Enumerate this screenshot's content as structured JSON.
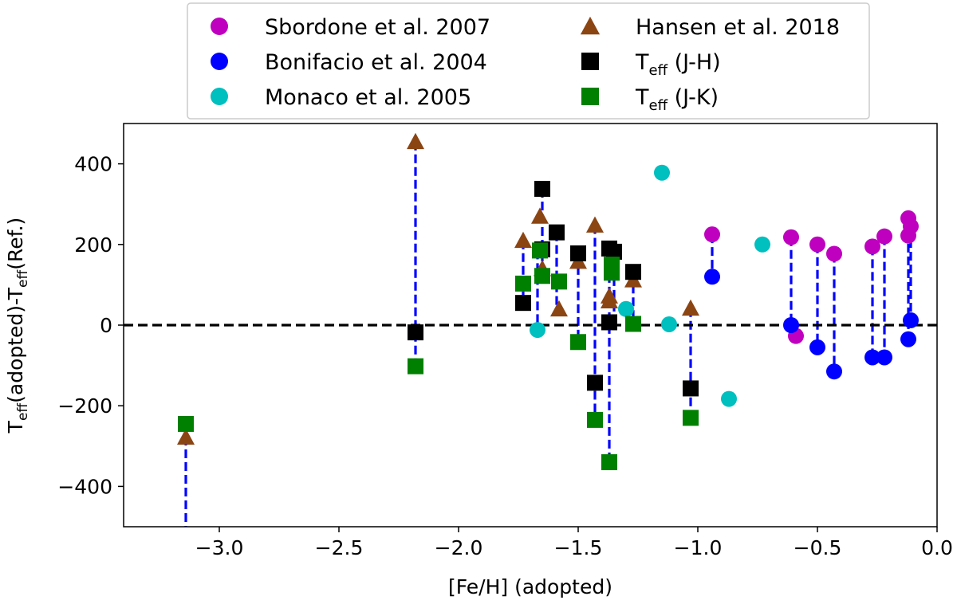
{
  "chart_data": {
    "type": "scatter",
    "xlabel": "[Fe/H] (adopted)",
    "ylabel": {
      "base": "T",
      "sub1": "eff",
      "mid": "(adopted)-T",
      "sub2": "eff",
      "tail": "(Ref.)"
    },
    "xlim": [
      -3.4,
      0.0
    ],
    "ylim": [
      -500,
      500
    ],
    "xticks": [
      -3.0,
      -2.5,
      -2.0,
      -1.5,
      -1.0,
      -0.5,
      0.0
    ],
    "xtick_labels": [
      "−3.0",
      "−2.5",
      "−2.0",
      "−1.5",
      "−1.0",
      "−0.5",
      "0.0"
    ],
    "yticks": [
      -400,
      -200,
      0,
      200,
      400
    ],
    "ytick_labels": [
      "−400",
      "−200",
      "0",
      "200",
      "400"
    ],
    "reference_line": {
      "y": 0,
      "style": "dashed",
      "color": "#000000"
    },
    "connector_color": "#0000ff",
    "legend_position": "top-center",
    "legend": [
      {
        "key": "sbordone",
        "label": "Sbordone et al. 2007",
        "marker": "circle",
        "color": "#bf00bf"
      },
      {
        "key": "bonifacio",
        "label": "Bonifacio et al. 2004",
        "marker": "circle",
        "color": "#0000ff"
      },
      {
        "key": "monaco",
        "label": "Monaco et al. 2005",
        "marker": "circle",
        "color": "#00bfbf"
      },
      {
        "key": "hansen",
        "label": "Hansen et al. 2018",
        "marker": "triangle",
        "color": "#8b4513"
      },
      {
        "key": "jh",
        "label": {
          "base": "T",
          "sub": "eff",
          "tail": " (J-H)"
        },
        "marker": "square",
        "color": "#000000"
      },
      {
        "key": "jk",
        "label": {
          "base": "T",
          "sub": "eff",
          "tail": " (J-K)"
        },
        "marker": "square",
        "color": "#008000"
      }
    ],
    "connectors": [
      [
        -3.14,
        -245,
        -3.14,
        -510
      ],
      [
        -2.18,
        455,
        -2.18,
        -100
      ],
      [
        -1.73,
        210,
        -1.73,
        55
      ],
      [
        -1.67,
        185,
        -1.67,
        -12
      ],
      [
        -1.65,
        338,
        -1.65,
        120
      ],
      [
        -1.59,
        230,
        -1.59,
        40
      ],
      [
        -1.5,
        178,
        -1.5,
        -40
      ],
      [
        -1.43,
        248,
        -1.43,
        -235
      ],
      [
        -1.37,
        190,
        -1.37,
        -340
      ],
      [
        -1.35,
        182,
        -1.35,
        3
      ],
      [
        -1.27,
        132,
        -1.27,
        3
      ],
      [
        -1.03,
        42,
        -1.03,
        -232
      ],
      [
        -0.94,
        225,
        -0.94,
        120
      ],
      [
        -0.61,
        218,
        -0.61,
        0
      ],
      [
        -0.5,
        200,
        -0.5,
        -55
      ],
      [
        -0.43,
        177,
        -0.43,
        -115
      ],
      [
        -0.27,
        195,
        -0.27,
        -80
      ],
      [
        -0.22,
        220,
        -0.22,
        -80
      ],
      [
        -0.12,
        265,
        -0.12,
        -35
      ],
      [
        -0.11,
        245,
        -0.11,
        12
      ]
    ],
    "series": [
      {
        "name": "Sbordone et al. 2007",
        "key": "sbordone",
        "x": [
          -0.94,
          -0.61,
          -0.59,
          -0.5,
          -0.43,
          -0.27,
          -0.22,
          -0.12,
          -0.12,
          -0.11
        ],
        "y": [
          225,
          218,
          -27,
          200,
          177,
          195,
          220,
          222,
          265,
          245
        ]
      },
      {
        "name": "Bonifacio et al. 2004",
        "key": "bonifacio",
        "x": [
          -0.94,
          -0.61,
          -0.5,
          -0.43,
          -0.27,
          -0.22,
          -0.12,
          -0.11
        ],
        "y": [
          120,
          0,
          -55,
          -115,
          -80,
          -80,
          -35,
          12
        ]
      },
      {
        "name": "Monaco et al. 2005",
        "key": "monaco",
        "x": [
          -1.67,
          -1.3,
          -1.15,
          -1.12,
          -0.87,
          -0.73
        ],
        "y": [
          -12,
          40,
          378,
          2,
          -183,
          200
        ]
      },
      {
        "name": "Hansen et al. 2018",
        "key": "hansen",
        "x": [
          -3.14,
          -2.18,
          -1.73,
          -1.66,
          -1.65,
          -1.58,
          -1.5,
          -1.43,
          -1.37,
          -1.37,
          -1.27,
          -1.03
        ],
        "y": [
          -278,
          455,
          210,
          270,
          140,
          40,
          158,
          248,
          72,
          60,
          112,
          42
        ]
      },
      {
        "name": "Teff (J-H)",
        "key": "jh",
        "x": [
          -2.18,
          -1.73,
          -1.65,
          -1.65,
          -1.59,
          -1.5,
          -1.43,
          -1.37,
          -1.37,
          -1.35,
          -1.27,
          -1.03
        ],
        "y": [
          -18,
          55,
          338,
          188,
          230,
          178,
          -143,
          190,
          7,
          182,
          132,
          -157
        ]
      },
      {
        "name": "Teff (J-K)",
        "key": "jk",
        "x": [
          -3.14,
          -2.18,
          -1.73,
          -1.66,
          -1.65,
          -1.58,
          -1.5,
          -1.43,
          -1.37,
          -1.36,
          -1.36,
          -1.27,
          -1.03
        ],
        "y": [
          -245,
          -102,
          103,
          185,
          122,
          108,
          -42,
          -235,
          -340,
          150,
          130,
          3,
          -230
        ]
      }
    ]
  }
}
